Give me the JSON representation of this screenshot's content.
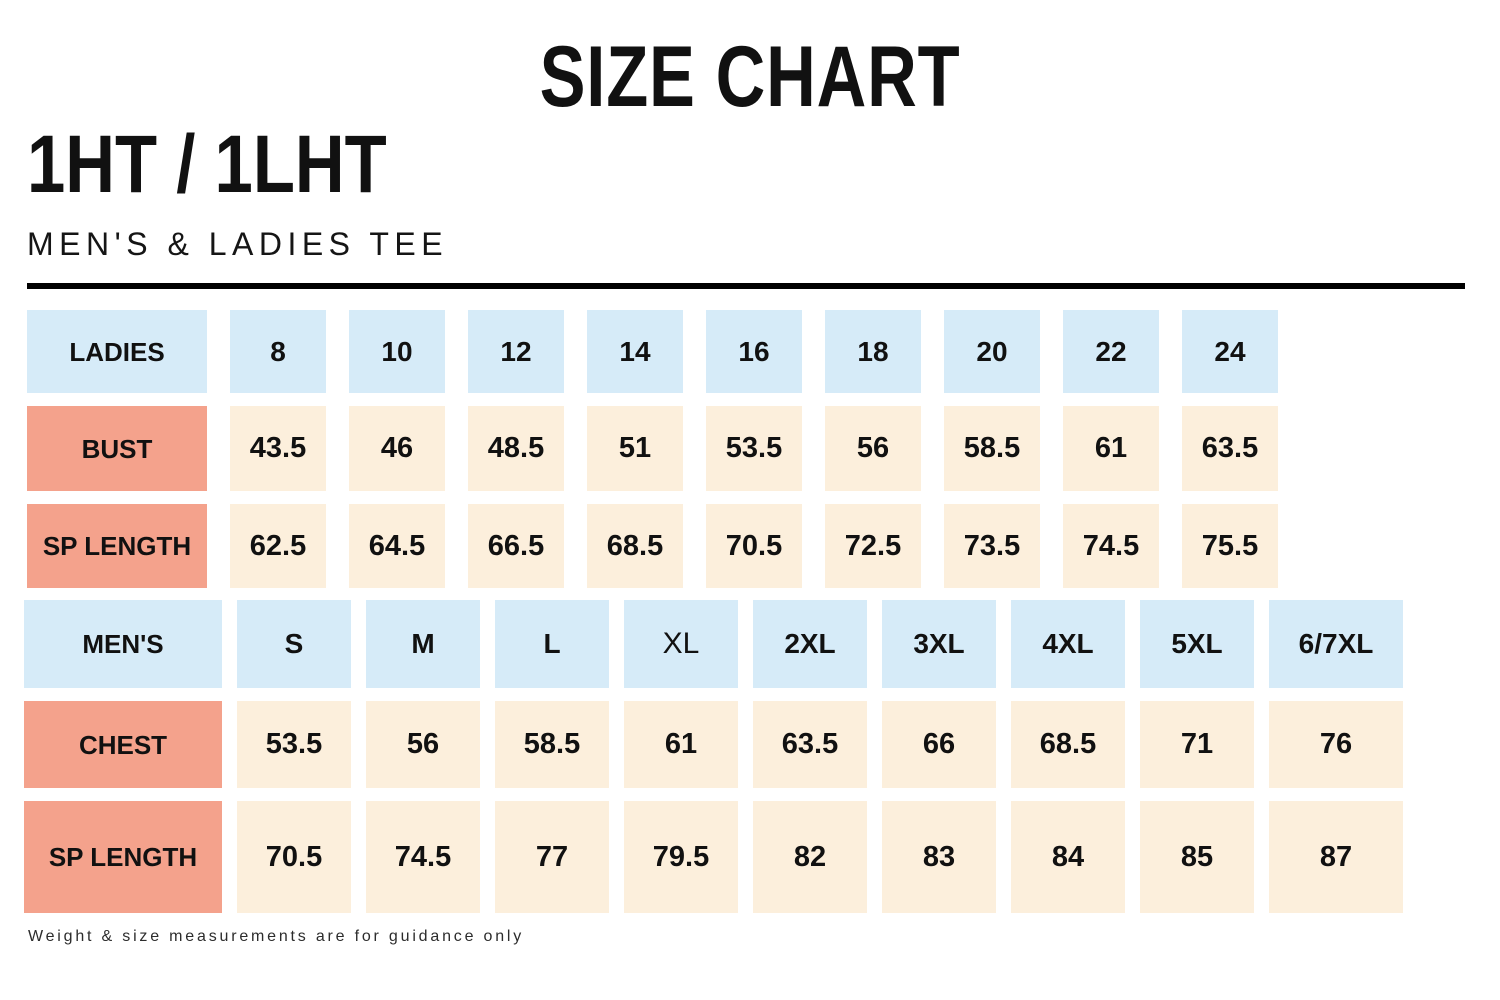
{
  "page_title": "SIZE CHART",
  "product_code": "1HT / 1LHT",
  "subtitle": "MEN'S & LADIES TEE",
  "footer_note": "Weight & size measurements are for guidance only",
  "colors": {
    "size_header_bg": "#d6ebf8",
    "measure_label_bg": "#f4a28c",
    "value_cell_bg": "#fcefdc",
    "text": "#111111",
    "divider": "#000000"
  },
  "ladies_table": {
    "header": {
      "label": "LADIES",
      "sizes": [
        "8",
        "10",
        "12",
        "14",
        "16",
        "18",
        "20",
        "22",
        "24"
      ]
    },
    "rows": [
      {
        "label": "BUST",
        "values": [
          "43.5",
          "46",
          "48.5",
          "51",
          "53.5",
          "56",
          "58.5",
          "61",
          "63.5"
        ]
      },
      {
        "label": "SP LENGTH",
        "values": [
          "62.5",
          "64.5",
          "66.5",
          "68.5",
          "70.5",
          "72.5",
          "73.5",
          "74.5",
          "75.5"
        ]
      }
    ]
  },
  "mens_table": {
    "header": {
      "label": "MEN'S",
      "sizes": [
        "S",
        "M",
        "L",
        "XL",
        "2XL",
        "3XL",
        "4XL",
        "5XL",
        "6/7XL"
      ]
    },
    "rows": [
      {
        "label": "CHEST",
        "values": [
          "53.5",
          "56",
          "58.5",
          "61",
          "63.5",
          "66",
          "68.5",
          "71",
          "76"
        ]
      },
      {
        "label": "SP LENGTH",
        "values": [
          "70.5",
          "74.5",
          "77",
          "79.5",
          "82",
          "83",
          "84",
          "85",
          "87"
        ]
      }
    ]
  }
}
